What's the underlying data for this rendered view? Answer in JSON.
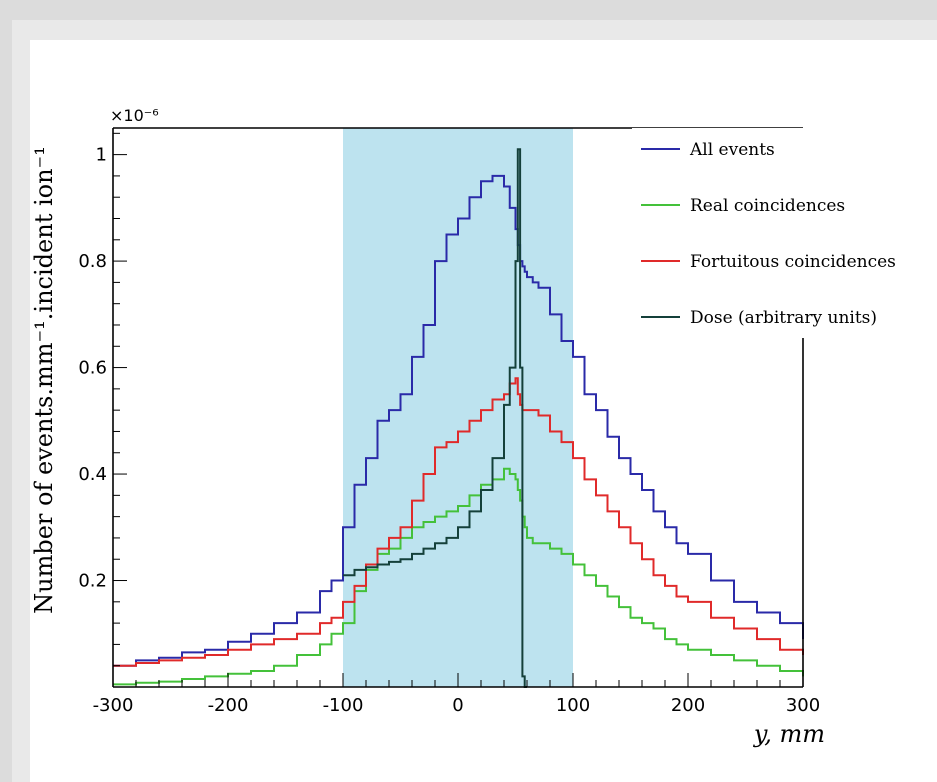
{
  "chart_data": {
    "type": "line",
    "title": "",
    "xlabel": "y, mm",
    "ylabel": "Number of events.mm⁻¹.incident ion⁻¹",
    "y_multiplier": "×10⁻⁶",
    "xlim": [
      -300,
      300
    ],
    "ylim": [
      0,
      1.05
    ],
    "x_ticks": [
      "-300",
      "-200",
      "-100",
      "0",
      "100",
      "200",
      "300"
    ],
    "y_ticks": [
      "0.2",
      "0.4",
      "0.6",
      "0.8",
      "1"
    ],
    "shaded_region": {
      "x_start": -100,
      "x_end": 100,
      "color": "#bde3ef"
    },
    "legend_position": "top-right",
    "x": [
      -300,
      -280,
      -260,
      -240,
      -220,
      -200,
      -180,
      -160,
      -140,
      -120,
      -110,
      -100,
      -90,
      -80,
      -70,
      -60,
      -50,
      -40,
      -30,
      -20,
      -10,
      0,
      10,
      20,
      30,
      40,
      45,
      50,
      52,
      54,
      56,
      58,
      60,
      65,
      70,
      80,
      90,
      100,
      110,
      120,
      130,
      140,
      150,
      160,
      170,
      180,
      190,
      200,
      220,
      240,
      260,
      280,
      300
    ],
    "series": [
      {
        "name": "All events",
        "color": "#2a2aa8",
        "values": [
          0.04,
          0.05,
          0.055,
          0.065,
          0.07,
          0.085,
          0.1,
          0.12,
          0.14,
          0.18,
          0.2,
          0.3,
          0.38,
          0.43,
          0.5,
          0.52,
          0.55,
          0.62,
          0.68,
          0.8,
          0.85,
          0.88,
          0.92,
          0.95,
          0.96,
          0.94,
          0.9,
          0.86,
          0.83,
          0.8,
          0.79,
          0.78,
          0.77,
          0.76,
          0.75,
          0.7,
          0.65,
          0.62,
          0.55,
          0.52,
          0.47,
          0.43,
          0.4,
          0.37,
          0.33,
          0.3,
          0.27,
          0.25,
          0.2,
          0.16,
          0.14,
          0.12,
          0.09
        ]
      },
      {
        "name": "Real coincidences",
        "color": "#44c13a",
        "values": [
          0.005,
          0.008,
          0.01,
          0.015,
          0.02,
          0.025,
          0.03,
          0.04,
          0.06,
          0.08,
          0.1,
          0.12,
          0.18,
          0.22,
          0.25,
          0.26,
          0.28,
          0.3,
          0.31,
          0.32,
          0.33,
          0.34,
          0.36,
          0.38,
          0.39,
          0.41,
          0.4,
          0.39,
          0.37,
          0.35,
          0.32,
          0.3,
          0.28,
          0.27,
          0.27,
          0.26,
          0.25,
          0.23,
          0.21,
          0.19,
          0.17,
          0.15,
          0.13,
          0.12,
          0.11,
          0.09,
          0.08,
          0.07,
          0.06,
          0.05,
          0.04,
          0.03,
          0.02
        ]
      },
      {
        "name": "Fortuitous coincidences",
        "color": "#e02a2a",
        "values": [
          0.04,
          0.045,
          0.05,
          0.055,
          0.06,
          0.07,
          0.08,
          0.09,
          0.1,
          0.12,
          0.13,
          0.16,
          0.19,
          0.23,
          0.26,
          0.28,
          0.3,
          0.35,
          0.4,
          0.45,
          0.46,
          0.48,
          0.5,
          0.52,
          0.54,
          0.55,
          0.57,
          0.58,
          0.55,
          0.53,
          0.52,
          0.52,
          0.52,
          0.52,
          0.51,
          0.48,
          0.46,
          0.43,
          0.39,
          0.36,
          0.33,
          0.3,
          0.27,
          0.24,
          0.21,
          0.19,
          0.17,
          0.16,
          0.13,
          0.11,
          0.09,
          0.07,
          0.06
        ]
      },
      {
        "name": "Dose (arbitrary units)",
        "color": "#14403a",
        "values": [
          null,
          null,
          null,
          null,
          null,
          null,
          null,
          null,
          null,
          null,
          null,
          0.21,
          0.22,
          0.225,
          0.23,
          0.235,
          0.24,
          0.25,
          0.26,
          0.27,
          0.28,
          0.3,
          0.33,
          0.37,
          0.43,
          0.53,
          0.6,
          0.8,
          1.01,
          0.6,
          0.02,
          0.0,
          null,
          null,
          null,
          null,
          null,
          null,
          null,
          null,
          null,
          null,
          null,
          null,
          null,
          null,
          null,
          null,
          null,
          null,
          null,
          null,
          null
        ]
      }
    ]
  }
}
